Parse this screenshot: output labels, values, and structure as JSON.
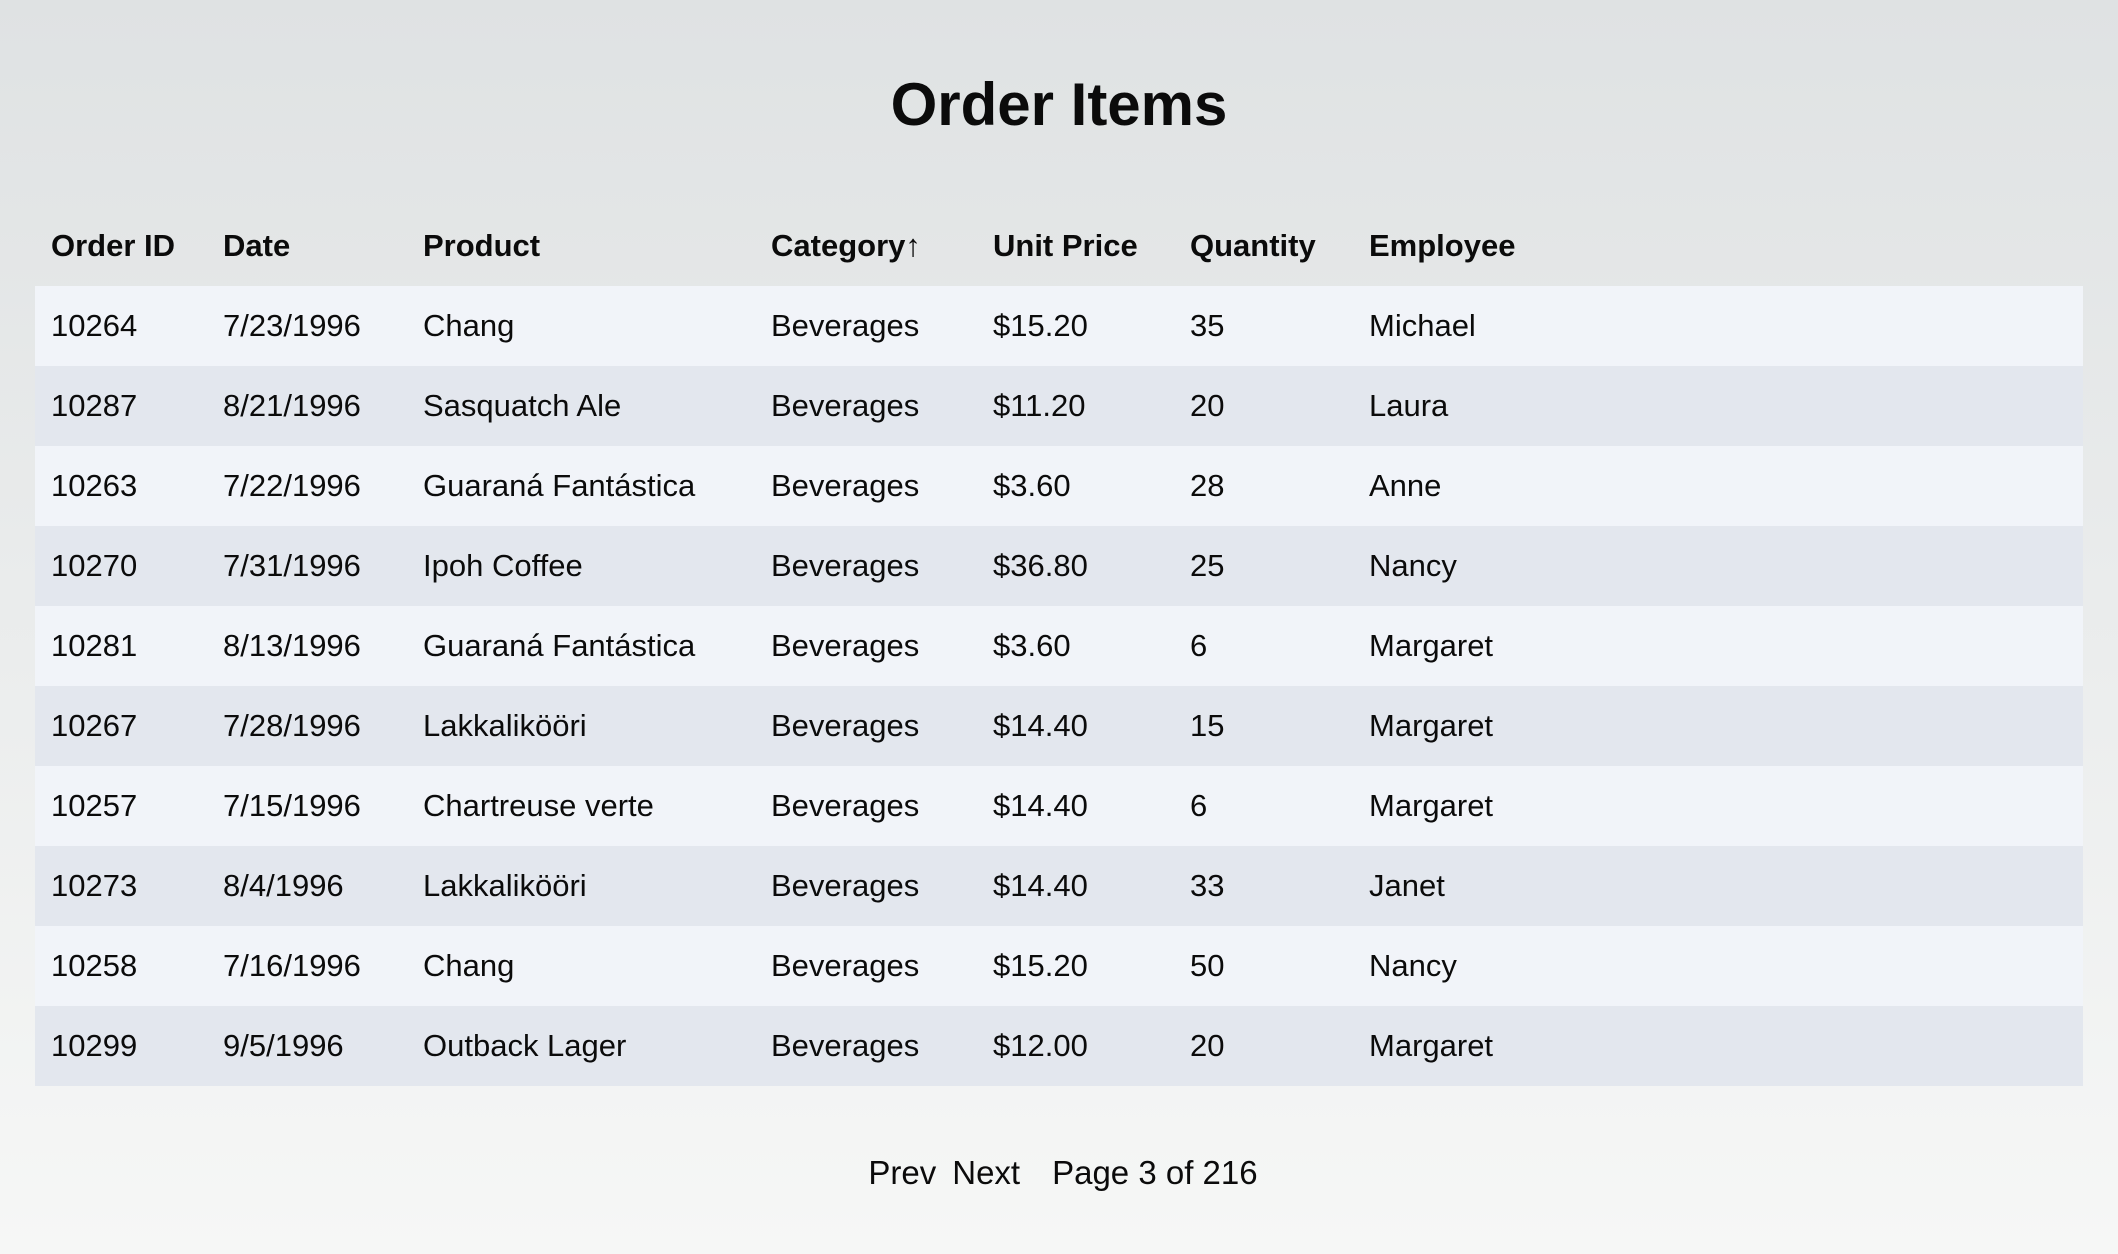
{
  "title": "Order Items",
  "columns": [
    "Order ID",
    "Date",
    "Product",
    "Category",
    "Unit Price",
    "Quantity",
    "Employee"
  ],
  "sort": {
    "column": "Category",
    "direction": "ascending",
    "indicator": "↑"
  },
  "rows": [
    [
      "10264",
      "7/23/1996",
      "Chang",
      "Beverages",
      "$15.20",
      "35",
      "Michael"
    ],
    [
      "10287",
      "8/21/1996",
      "Sasquatch Ale",
      "Beverages",
      "$11.20",
      "20",
      "Laura"
    ],
    [
      "10263",
      "7/22/1996",
      "Guaraná Fantástica",
      "Beverages",
      "$3.60",
      "28",
      "Anne"
    ],
    [
      "10270",
      "7/31/1996",
      "Ipoh Coffee",
      "Beverages",
      "$36.80",
      "25",
      "Nancy"
    ],
    [
      "10281",
      "8/13/1996",
      "Guaraná Fantástica",
      "Beverages",
      "$3.60",
      "6",
      "Margaret"
    ],
    [
      "10267",
      "7/28/1996",
      "Lakkalikööri",
      "Beverages",
      "$14.40",
      "15",
      "Margaret"
    ],
    [
      "10257",
      "7/15/1996",
      "Chartreuse verte",
      "Beverages",
      "$14.40",
      "6",
      "Margaret"
    ],
    [
      "10273",
      "8/4/1996",
      "Lakkalikööri",
      "Beverages",
      "$14.40",
      "33",
      "Janet"
    ],
    [
      "10258",
      "7/16/1996",
      "Chang",
      "Beverages",
      "$15.20",
      "50",
      "Nancy"
    ],
    [
      "10299",
      "9/5/1996",
      "Outback Lager",
      "Beverages",
      "$12.00",
      "20",
      "Margaret"
    ]
  ],
  "pagination": {
    "prev_label": "Prev",
    "next_label": "Next",
    "page_info": "Page 3 of 216"
  }
}
